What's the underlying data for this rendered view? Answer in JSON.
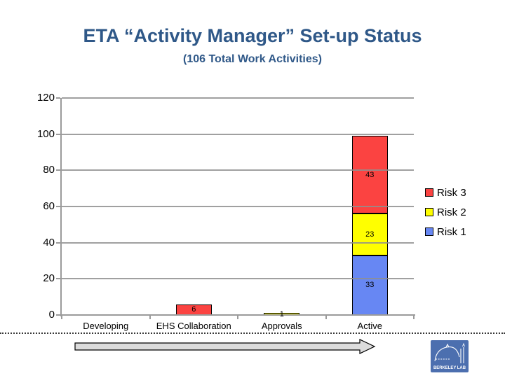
{
  "slide": {
    "kind": "presentation-slide"
  },
  "chart_data": {
    "type": "bar",
    "stacked": true,
    "title": "ETA “Activity Manager” Set-up Status",
    "subtitle": "(106 Total Work Activities)",
    "categories": [
      "Developing",
      "EHS Collaboration",
      "Approvals",
      "Active"
    ],
    "series": [
      {
        "name": "Risk 1",
        "color": "#6787F3",
        "values": [
          0,
          0,
          0,
          33
        ]
      },
      {
        "name": "Risk 2",
        "color": "#FFFF00",
        "values": [
          0,
          0,
          1,
          23
        ]
      },
      {
        "name": "Risk 3",
        "color": "#FB4341",
        "values": [
          0,
          6,
          0,
          43
        ]
      }
    ],
    "data_labels_shown": [
      6,
      1,
      33,
      23,
      43
    ],
    "ylim": [
      0,
      120
    ],
    "yticks": [
      0,
      20,
      40,
      60,
      80,
      100,
      120
    ],
    "grid": true,
    "legend_position": "right",
    "legend_order": [
      "Risk 3",
      "Risk 2",
      "Risk 1"
    ]
  },
  "footer": {
    "logo_text": "BERKELEY LAB"
  },
  "colors": {
    "title_text": "#2F5888",
    "axis": "#9B9B9B",
    "arrow_fill": "#DCDCDC",
    "logo_background": "#4C6FAF"
  }
}
